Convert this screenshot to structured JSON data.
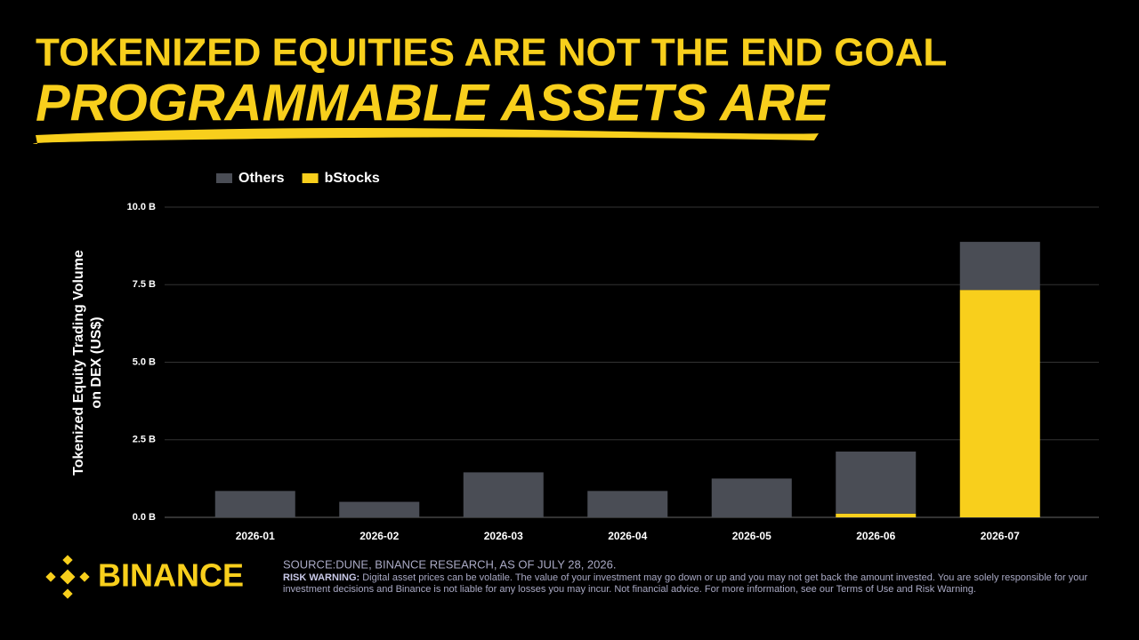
{
  "chart_data": {
    "type": "stacked_bar",
    "title": "TOKENIZED EQUITIES ARE NOT THE END GOAL",
    "subtitle": "PROGRAMMABLE ASSETS ARE",
    "y_label": "Tokenized Equity Trading Volume on DEX (US$)",
    "categories": [
      "2026-01",
      "2026-02",
      "2026-03",
      "2026-04",
      "2026-05",
      "2026-06",
      "2026-07"
    ],
    "series": [
      {
        "name": "Others",
        "color": "#4a4d55",
        "values": [
          0.85,
          0.5,
          1.45,
          0.85,
          1.25,
          2.0,
          1.55
        ]
      },
      {
        "name": "bStocks",
        "color": "#f8cf1c",
        "values": [
          0,
          0,
          0,
          0,
          0,
          0.12,
          7.33
        ]
      }
    ],
    "ylim": [
      0,
      10
    ],
    "yticks": [
      {
        "value": 0,
        "label": "0.0 B"
      },
      {
        "value": 2.5,
        "label": "2.5 B"
      },
      {
        "value": 5,
        "label": "5.0 B"
      },
      {
        "value": 7.5,
        "label": "7.5 B"
      },
      {
        "value": 10,
        "label": "10.0 B"
      }
    ],
    "grid": true
  },
  "footer": {
    "logo": "BINANCE",
    "source": "SOURCE:DUNE, BINANCE RESEARCH, AS OF JULY 28, 2026.",
    "risk_label": "RISK WARNING:",
    "risk_text": "Digital asset prices can be volatile. The value of your investment may go down or up and you may not get back the amount invested. You are solely responsible for your investment decisions and Binance is not liable for any losses you may incur. Not financial advice. For more information, see our Terms of Use and Risk Warning."
  }
}
